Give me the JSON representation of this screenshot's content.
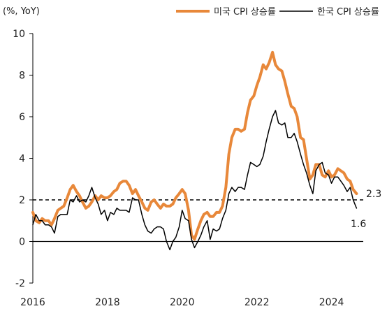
{
  "chart_data": {
    "type": "line",
    "unit_label": "(%, YoY)",
    "ylim": [
      -2,
      10
    ],
    "yticks": [
      -2,
      0,
      2,
      4,
      6,
      8,
      10
    ],
    "xlim": [
      2016,
      2024.85
    ],
    "xticks": [
      2016,
      2018,
      2020,
      2022,
      2024
    ],
    "grid": false,
    "legend_position": "top",
    "reference_line": {
      "y": 2,
      "style": "dashed"
    },
    "series": [
      {
        "name": "미국 CPI 상승률",
        "color": "#E8883A",
        "points": [
          [
            2016.0,
            1.4
          ],
          [
            2016.08,
            1.0
          ],
          [
            2016.17,
            0.9
          ],
          [
            2016.25,
            1.1
          ],
          [
            2016.33,
            1.0
          ],
          [
            2016.42,
            1.0
          ],
          [
            2016.5,
            0.8
          ],
          [
            2016.58,
            1.1
          ],
          [
            2016.67,
            1.5
          ],
          [
            2016.75,
            1.6
          ],
          [
            2016.83,
            1.7
          ],
          [
            2016.92,
            2.1
          ],
          [
            2017.0,
            2.5
          ],
          [
            2017.08,
            2.7
          ],
          [
            2017.17,
            2.4
          ],
          [
            2017.25,
            2.2
          ],
          [
            2017.33,
            1.9
          ],
          [
            2017.42,
            1.6
          ],
          [
            2017.5,
            1.7
          ],
          [
            2017.58,
            1.9
          ],
          [
            2017.67,
            2.2
          ],
          [
            2017.75,
            2.0
          ],
          [
            2017.83,
            2.2
          ],
          [
            2017.92,
            2.1
          ],
          [
            2018.0,
            2.1
          ],
          [
            2018.08,
            2.2
          ],
          [
            2018.17,
            2.4
          ],
          [
            2018.25,
            2.5
          ],
          [
            2018.33,
            2.8
          ],
          [
            2018.42,
            2.9
          ],
          [
            2018.5,
            2.9
          ],
          [
            2018.58,
            2.7
          ],
          [
            2018.67,
            2.3
          ],
          [
            2018.75,
            2.5
          ],
          [
            2018.83,
            2.2
          ],
          [
            2018.92,
            1.9
          ],
          [
            2019.0,
            1.6
          ],
          [
            2019.08,
            1.5
          ],
          [
            2019.17,
            1.9
          ],
          [
            2019.25,
            2.0
          ],
          [
            2019.33,
            1.8
          ],
          [
            2019.42,
            1.6
          ],
          [
            2019.5,
            1.8
          ],
          [
            2019.58,
            1.7
          ],
          [
            2019.67,
            1.7
          ],
          [
            2019.75,
            1.8
          ],
          [
            2019.83,
            2.1
          ],
          [
            2019.92,
            2.3
          ],
          [
            2020.0,
            2.5
          ],
          [
            2020.08,
            2.3
          ],
          [
            2020.17,
            1.5
          ],
          [
            2020.25,
            0.3
          ],
          [
            2020.33,
            0.1
          ],
          [
            2020.42,
            0.6
          ],
          [
            2020.5,
            1.0
          ],
          [
            2020.58,
            1.3
          ],
          [
            2020.67,
            1.4
          ],
          [
            2020.75,
            1.2
          ],
          [
            2020.83,
            1.2
          ],
          [
            2020.92,
            1.4
          ],
          [
            2021.0,
            1.4
          ],
          [
            2021.08,
            1.7
          ],
          [
            2021.17,
            2.6
          ],
          [
            2021.25,
            4.2
          ],
          [
            2021.33,
            5.0
          ],
          [
            2021.42,
            5.4
          ],
          [
            2021.5,
            5.4
          ],
          [
            2021.58,
            5.3
          ],
          [
            2021.67,
            5.4
          ],
          [
            2021.75,
            6.2
          ],
          [
            2021.83,
            6.8
          ],
          [
            2021.92,
            7.0
          ],
          [
            2022.0,
            7.5
          ],
          [
            2022.08,
            7.9
          ],
          [
            2022.17,
            8.5
          ],
          [
            2022.25,
            8.3
          ],
          [
            2022.33,
            8.6
          ],
          [
            2022.42,
            9.1
          ],
          [
            2022.5,
            8.5
          ],
          [
            2022.58,
            8.3
          ],
          [
            2022.67,
            8.2
          ],
          [
            2022.75,
            7.7
          ],
          [
            2022.83,
            7.1
          ],
          [
            2022.92,
            6.5
          ],
          [
            2023.0,
            6.4
          ],
          [
            2023.08,
            6.0
          ],
          [
            2023.17,
            5.0
          ],
          [
            2023.25,
            4.9
          ],
          [
            2023.33,
            4.0
          ],
          [
            2023.42,
            3.0
          ],
          [
            2023.5,
            3.2
          ],
          [
            2023.58,
            3.7
          ],
          [
            2023.67,
            3.7
          ],
          [
            2023.75,
            3.2
          ],
          [
            2023.83,
            3.1
          ],
          [
            2023.92,
            3.4
          ],
          [
            2024.0,
            3.1
          ],
          [
            2024.08,
            3.2
          ],
          [
            2024.17,
            3.5
          ],
          [
            2024.25,
            3.4
          ],
          [
            2024.33,
            3.3
          ],
          [
            2024.42,
            3.0
          ],
          [
            2024.5,
            2.9
          ],
          [
            2024.58,
            2.5
          ],
          [
            2024.67,
            2.3
          ]
        ]
      },
      {
        "name": "한국 CPI 상승률",
        "color": "#000000",
        "points": [
          [
            2016.0,
            0.8
          ],
          [
            2016.08,
            1.3
          ],
          [
            2016.17,
            1.0
          ],
          [
            2016.25,
            1.0
          ],
          [
            2016.33,
            0.8
          ],
          [
            2016.42,
            0.8
          ],
          [
            2016.5,
            0.7
          ],
          [
            2016.58,
            0.4
          ],
          [
            2016.67,
            1.2
          ],
          [
            2016.75,
            1.3
          ],
          [
            2016.83,
            1.3
          ],
          [
            2016.92,
            1.3
          ],
          [
            2017.0,
            2.0
          ],
          [
            2017.08,
            1.9
          ],
          [
            2017.17,
            2.2
          ],
          [
            2017.25,
            1.9
          ],
          [
            2017.33,
            2.0
          ],
          [
            2017.42,
            1.9
          ],
          [
            2017.5,
            2.2
          ],
          [
            2017.58,
            2.6
          ],
          [
            2017.67,
            2.1
          ],
          [
            2017.75,
            1.8
          ],
          [
            2017.83,
            1.3
          ],
          [
            2017.92,
            1.5
          ],
          [
            2018.0,
            1.0
          ],
          [
            2018.08,
            1.4
          ],
          [
            2018.17,
            1.3
          ],
          [
            2018.25,
            1.6
          ],
          [
            2018.33,
            1.5
          ],
          [
            2018.42,
            1.5
          ],
          [
            2018.5,
            1.5
          ],
          [
            2018.58,
            1.4
          ],
          [
            2018.67,
            2.1
          ],
          [
            2018.75,
            2.0
          ],
          [
            2018.83,
            2.0
          ],
          [
            2018.92,
            1.3
          ],
          [
            2019.0,
            0.8
          ],
          [
            2019.08,
            0.5
          ],
          [
            2019.17,
            0.4
          ],
          [
            2019.25,
            0.6
          ],
          [
            2019.33,
            0.7
          ],
          [
            2019.42,
            0.7
          ],
          [
            2019.5,
            0.6
          ],
          [
            2019.58,
            0.0
          ],
          [
            2019.67,
            -0.4
          ],
          [
            2019.75,
            0.0
          ],
          [
            2019.83,
            0.2
          ],
          [
            2019.92,
            0.7
          ],
          [
            2020.0,
            1.5
          ],
          [
            2020.08,
            1.1
          ],
          [
            2020.17,
            1.0
          ],
          [
            2020.25,
            0.1
          ],
          [
            2020.33,
            -0.3
          ],
          [
            2020.42,
            0.0
          ],
          [
            2020.5,
            0.3
          ],
          [
            2020.58,
            0.7
          ],
          [
            2020.67,
            1.0
          ],
          [
            2020.75,
            0.1
          ],
          [
            2020.83,
            0.6
          ],
          [
            2020.92,
            0.5
          ],
          [
            2021.0,
            0.6
          ],
          [
            2021.08,
            1.1
          ],
          [
            2021.17,
            1.5
          ],
          [
            2021.25,
            2.3
          ],
          [
            2021.33,
            2.6
          ],
          [
            2021.42,
            2.4
          ],
          [
            2021.5,
            2.6
          ],
          [
            2021.58,
            2.6
          ],
          [
            2021.67,
            2.5
          ],
          [
            2021.75,
            3.2
          ],
          [
            2021.83,
            3.8
          ],
          [
            2021.92,
            3.7
          ],
          [
            2022.0,
            3.6
          ],
          [
            2022.08,
            3.7
          ],
          [
            2022.17,
            4.1
          ],
          [
            2022.25,
            4.8
          ],
          [
            2022.33,
            5.4
          ],
          [
            2022.42,
            6.0
          ],
          [
            2022.5,
            6.3
          ],
          [
            2022.58,
            5.7
          ],
          [
            2022.67,
            5.6
          ],
          [
            2022.75,
            5.7
          ],
          [
            2022.83,
            5.0
          ],
          [
            2022.92,
            5.0
          ],
          [
            2023.0,
            5.2
          ],
          [
            2023.08,
            4.8
          ],
          [
            2023.17,
            4.2
          ],
          [
            2023.25,
            3.7
          ],
          [
            2023.33,
            3.3
          ],
          [
            2023.42,
            2.7
          ],
          [
            2023.5,
            2.3
          ],
          [
            2023.58,
            3.4
          ],
          [
            2023.67,
            3.7
          ],
          [
            2023.75,
            3.8
          ],
          [
            2023.83,
            3.3
          ],
          [
            2023.92,
            3.2
          ],
          [
            2024.0,
            2.8
          ],
          [
            2024.08,
            3.1
          ],
          [
            2024.17,
            3.1
          ],
          [
            2024.25,
            2.9
          ],
          [
            2024.33,
            2.7
          ],
          [
            2024.42,
            2.4
          ],
          [
            2024.5,
            2.6
          ],
          [
            2024.58,
            2.0
          ],
          [
            2024.67,
            1.6
          ]
        ]
      }
    ],
    "end_labels": [
      {
        "series": "미국 CPI 상승률",
        "text": "2.3"
      },
      {
        "series": "한국 CPI 상승률",
        "text": "1.6"
      }
    ]
  }
}
